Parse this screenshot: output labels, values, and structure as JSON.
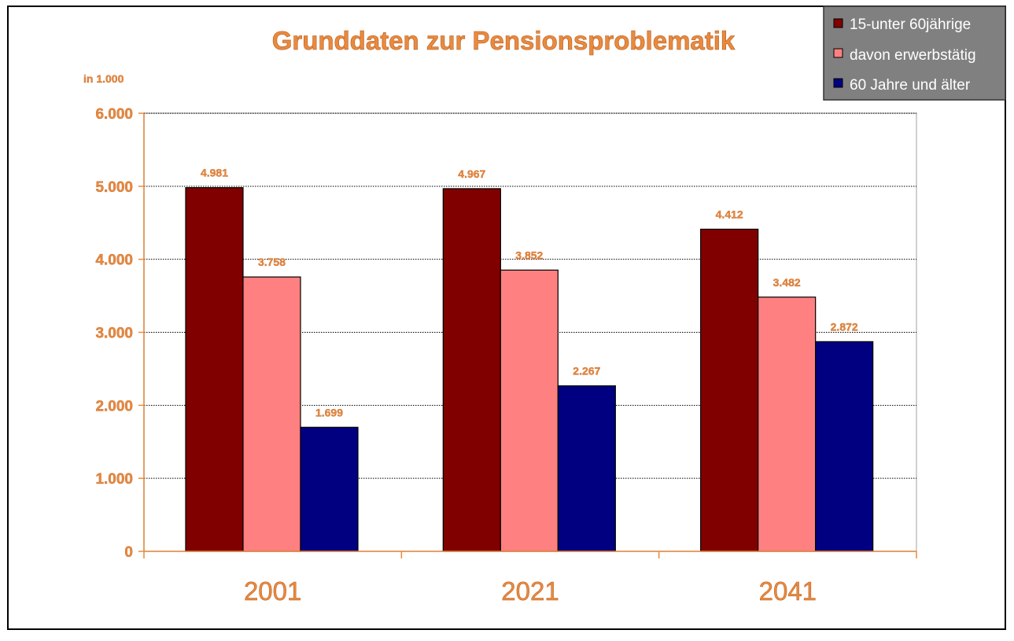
{
  "chart_data": {
    "type": "bar",
    "title": "Grunddaten zur Pensionsproblematik",
    "unit_label": "in 1.000",
    "categories": [
      "2001",
      "2021",
      "2041"
    ],
    "series": [
      {
        "name": "15-unter 60jährige",
        "color": "#800000",
        "values": [
          4981,
          4967,
          4412
        ],
        "labels": [
          "4.981",
          "4.967",
          "4.412"
        ]
      },
      {
        "name": "davon erwerbstätig",
        "color": "#FF8080",
        "values": [
          3758,
          3852,
          3482
        ],
        "labels": [
          "3.758",
          "3.852",
          "3.482"
        ]
      },
      {
        "name": "60 Jahre und älter",
        "color": "#000080",
        "values": [
          1699,
          2267,
          2872
        ],
        "labels": [
          "1.699",
          "2.267",
          "2.872"
        ]
      }
    ],
    "ylim": [
      0,
      6000
    ],
    "yticks": [
      {
        "value": 0,
        "label": "0"
      },
      {
        "value": 1000,
        "label": "1.000"
      },
      {
        "value": 2000,
        "label": "2.000"
      },
      {
        "value": 3000,
        "label": "3.000"
      },
      {
        "value": 4000,
        "label": "4.000"
      },
      {
        "value": 5000,
        "label": "5.000"
      },
      {
        "value": 6000,
        "label": "6.000"
      }
    ],
    "grid": true,
    "legend_position": "top-right",
    "colors": {
      "text": "#E98A3E",
      "axis": "#E98A3E",
      "legend_background": "#808080"
    }
  }
}
